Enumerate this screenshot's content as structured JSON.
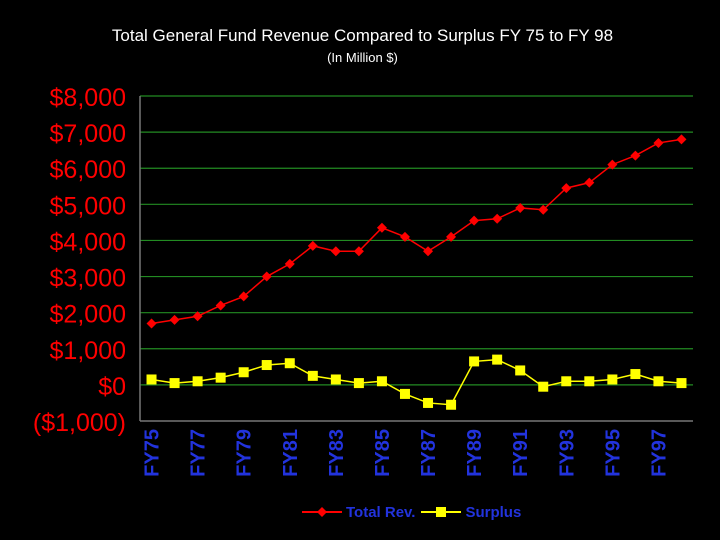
{
  "chart_data": {
    "type": "line",
    "title": "Total General Fund Revenue Compared to Surplus FY 75 to FY 98",
    "subtitle": "(In Million $)",
    "xlabel": "",
    "ylabel": "",
    "ylim": [
      -1000,
      8000
    ],
    "y_ticks": [
      "$8,000",
      "$7,000",
      "$6,000",
      "$5,000",
      "$4,000",
      "$3,000",
      "$2,000",
      "$1,000",
      "$0",
      "($1,000)"
    ],
    "y_tick_values": [
      8000,
      7000,
      6000,
      5000,
      4000,
      3000,
      2000,
      1000,
      0,
      -1000
    ],
    "x_labels_shown": [
      "FY75",
      "FY77",
      "FY79",
      "FY81",
      "FY83",
      "FY85",
      "FY87",
      "FY89",
      "FY91",
      "FY93",
      "FY95",
      "FY97"
    ],
    "categories": [
      "FY75",
      "FY76",
      "FY77",
      "FY78",
      "FY79",
      "FY80",
      "FY81",
      "FY82",
      "FY83",
      "FY84",
      "FY85",
      "FY86",
      "FY87",
      "FY88",
      "FY89",
      "FY90",
      "FY91",
      "FY92",
      "FY93",
      "FY94",
      "FY95",
      "FY96",
      "FY97",
      "FY98"
    ],
    "grid": true,
    "legend_position": "bottom",
    "series": [
      {
        "name": "Total Rev.",
        "color": "#ff0000",
        "marker": "diamond",
        "values": [
          1700,
          1800,
          1900,
          2200,
          2450,
          3000,
          3350,
          3850,
          3700,
          3700,
          4350,
          4100,
          3700,
          4100,
          4550,
          4600,
          4900,
          4850,
          5450,
          5600,
          6100,
          6350,
          6700,
          6800
        ]
      },
      {
        "name": "Surplus",
        "color": "#ffff00",
        "marker": "square",
        "values": [
          150,
          50,
          100,
          200,
          350,
          550,
          600,
          250,
          150,
          50,
          100,
          -250,
          -500,
          -550,
          650,
          700,
          400,
          -50,
          100,
          100,
          150,
          300,
          100,
          50
        ]
      }
    ],
    "colors": {
      "axis_labels": "#ff0000",
      "x_labels": "#2233dd",
      "grid": "#228b22",
      "background": "#000000"
    }
  }
}
